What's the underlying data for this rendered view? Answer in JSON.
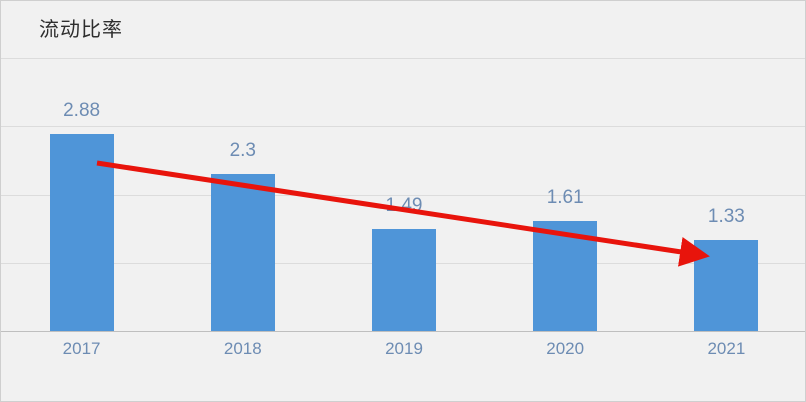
{
  "title": "流动比率",
  "colors": {
    "background": "#f1f1f1",
    "bar": "#4f95d8",
    "label": "#6d8cb3",
    "title": "#2e2e2e",
    "gridline": "#dcdcdc",
    "axis": "#bfbfbf",
    "arrow": "#e8140c"
  },
  "chart_data": {
    "type": "bar",
    "title": "流动比率",
    "categories": [
      "2017",
      "2018",
      "2019",
      "2020",
      "2021"
    ],
    "values": [
      2.88,
      2.3,
      1.49,
      1.61,
      1.33
    ],
    "xlabel": "",
    "ylabel": "",
    "ylim": [
      0,
      4
    ],
    "grid": true,
    "gridline_step": 1,
    "legend_position": "none",
    "annotations": [
      {
        "type": "arrow",
        "description": "red downward trend arrow from 2017 bar to 2021 bar",
        "color": "#e8140c"
      }
    ]
  }
}
